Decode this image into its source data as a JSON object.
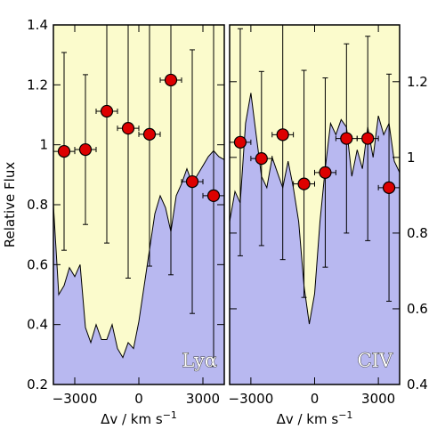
{
  "chart_data": [
    {
      "type": "line",
      "ylabel": "Relative Flux",
      "xlabel": "Δv / km s",
      "xlabel_sup": "−1",
      "annotation": "Lyα",
      "yaxis_side": "left",
      "background": "#fbfbcc",
      "xlim": [
        -4000,
        4000
      ],
      "xticks": [
        {
          "value": -3000,
          "label": "−3000"
        },
        0,
        3000
      ],
      "ylim": [
        0.2,
        1.4
      ],
      "yticks": [
        0.2,
        0.4,
        0.6,
        0.8,
        1,
        1.2,
        1.4
      ],
      "spectrum": {
        "color": "#b8b8f0",
        "x": [
          -4000,
          -3750,
          -3500,
          -3250,
          -3000,
          -2750,
          -2500,
          -2250,
          -2000,
          -1750,
          -1500,
          -1250,
          -1000,
          -750,
          -500,
          -250,
          0,
          250,
          500,
          750,
          1000,
          1250,
          1500,
          1750,
          2000,
          2250,
          2500,
          2750,
          3000,
          3250,
          3500,
          3750,
          4000
        ],
        "values": [
          0.8,
          0.5,
          0.53,
          0.59,
          0.56,
          0.6,
          0.39,
          0.34,
          0.4,
          0.35,
          0.35,
          0.4,
          0.32,
          0.29,
          0.34,
          0.32,
          0.41,
          0.53,
          0.65,
          0.77,
          0.83,
          0.79,
          0.71,
          0.83,
          0.87,
          0.92,
          0.87,
          0.9,
          0.93,
          0.96,
          0.98,
          0.96,
          0.95
        ]
      },
      "points": {
        "color": "#dd0000",
        "xerr": 500,
        "x": [
          -3500,
          -2500,
          -1500,
          -500,
          500,
          1500,
          2500,
          3500
        ],
        "values": [
          0.978,
          0.984,
          1.112,
          1.055,
          1.035,
          1.216,
          0.877,
          0.83
        ],
        "errors": [
          0.33,
          0.25,
          0.44,
          0.5,
          0.44,
          0.65,
          0.44,
          0.57
        ]
      }
    },
    {
      "type": "line",
      "xlabel": "Δv / km s",
      "xlabel_sup": "−1",
      "annotation": "CIV",
      "yaxis_side": "right",
      "background": "#fbfbcc",
      "xlim": [
        -4000,
        4000
      ],
      "xticks": [
        {
          "value": -3000,
          "label": "−3000"
        },
        0,
        3000
      ],
      "ylim": [
        0.4,
        1.35
      ],
      "yticks": [
        0.4,
        0.6,
        0.8,
        1,
        1.2
      ],
      "spectrum": {
        "color": "#b8b8f0",
        "x": [
          -4000,
          -3750,
          -3500,
          -3250,
          -3000,
          -2750,
          -2500,
          -2250,
          -2000,
          -1750,
          -1500,
          -1250,
          -1000,
          -750,
          -500,
          -250,
          0,
          250,
          500,
          750,
          1000,
          1250,
          1500,
          1750,
          2000,
          2250,
          2500,
          2750,
          3000,
          3250,
          3500,
          3750,
          4000
        ],
        "values": [
          0.83,
          0.91,
          0.88,
          1.09,
          1.17,
          1.06,
          0.95,
          0.92,
          1.0,
          0.96,
          0.92,
          0.99,
          0.92,
          0.83,
          0.66,
          0.56,
          0.64,
          0.83,
          0.97,
          1.09,
          1.06,
          1.1,
          1.08,
          0.95,
          1.02,
          0.97,
          1.08,
          1.0,
          1.11,
          1.06,
          1.09,
          0.99,
          0.96
        ]
      },
      "points": {
        "color": "#dd0000",
        "xerr": 500,
        "x": [
          -3500,
          -2500,
          -1500,
          -500,
          500,
          1500,
          2500,
          3500
        ],
        "values": [
          1.04,
          0.997,
          1.06,
          0.93,
          0.96,
          1.05,
          1.05,
          0.92
        ],
        "errors": [
          0.3,
          0.23,
          0.33,
          0.3,
          0.25,
          0.25,
          0.27,
          0.3
        ]
      }
    }
  ]
}
